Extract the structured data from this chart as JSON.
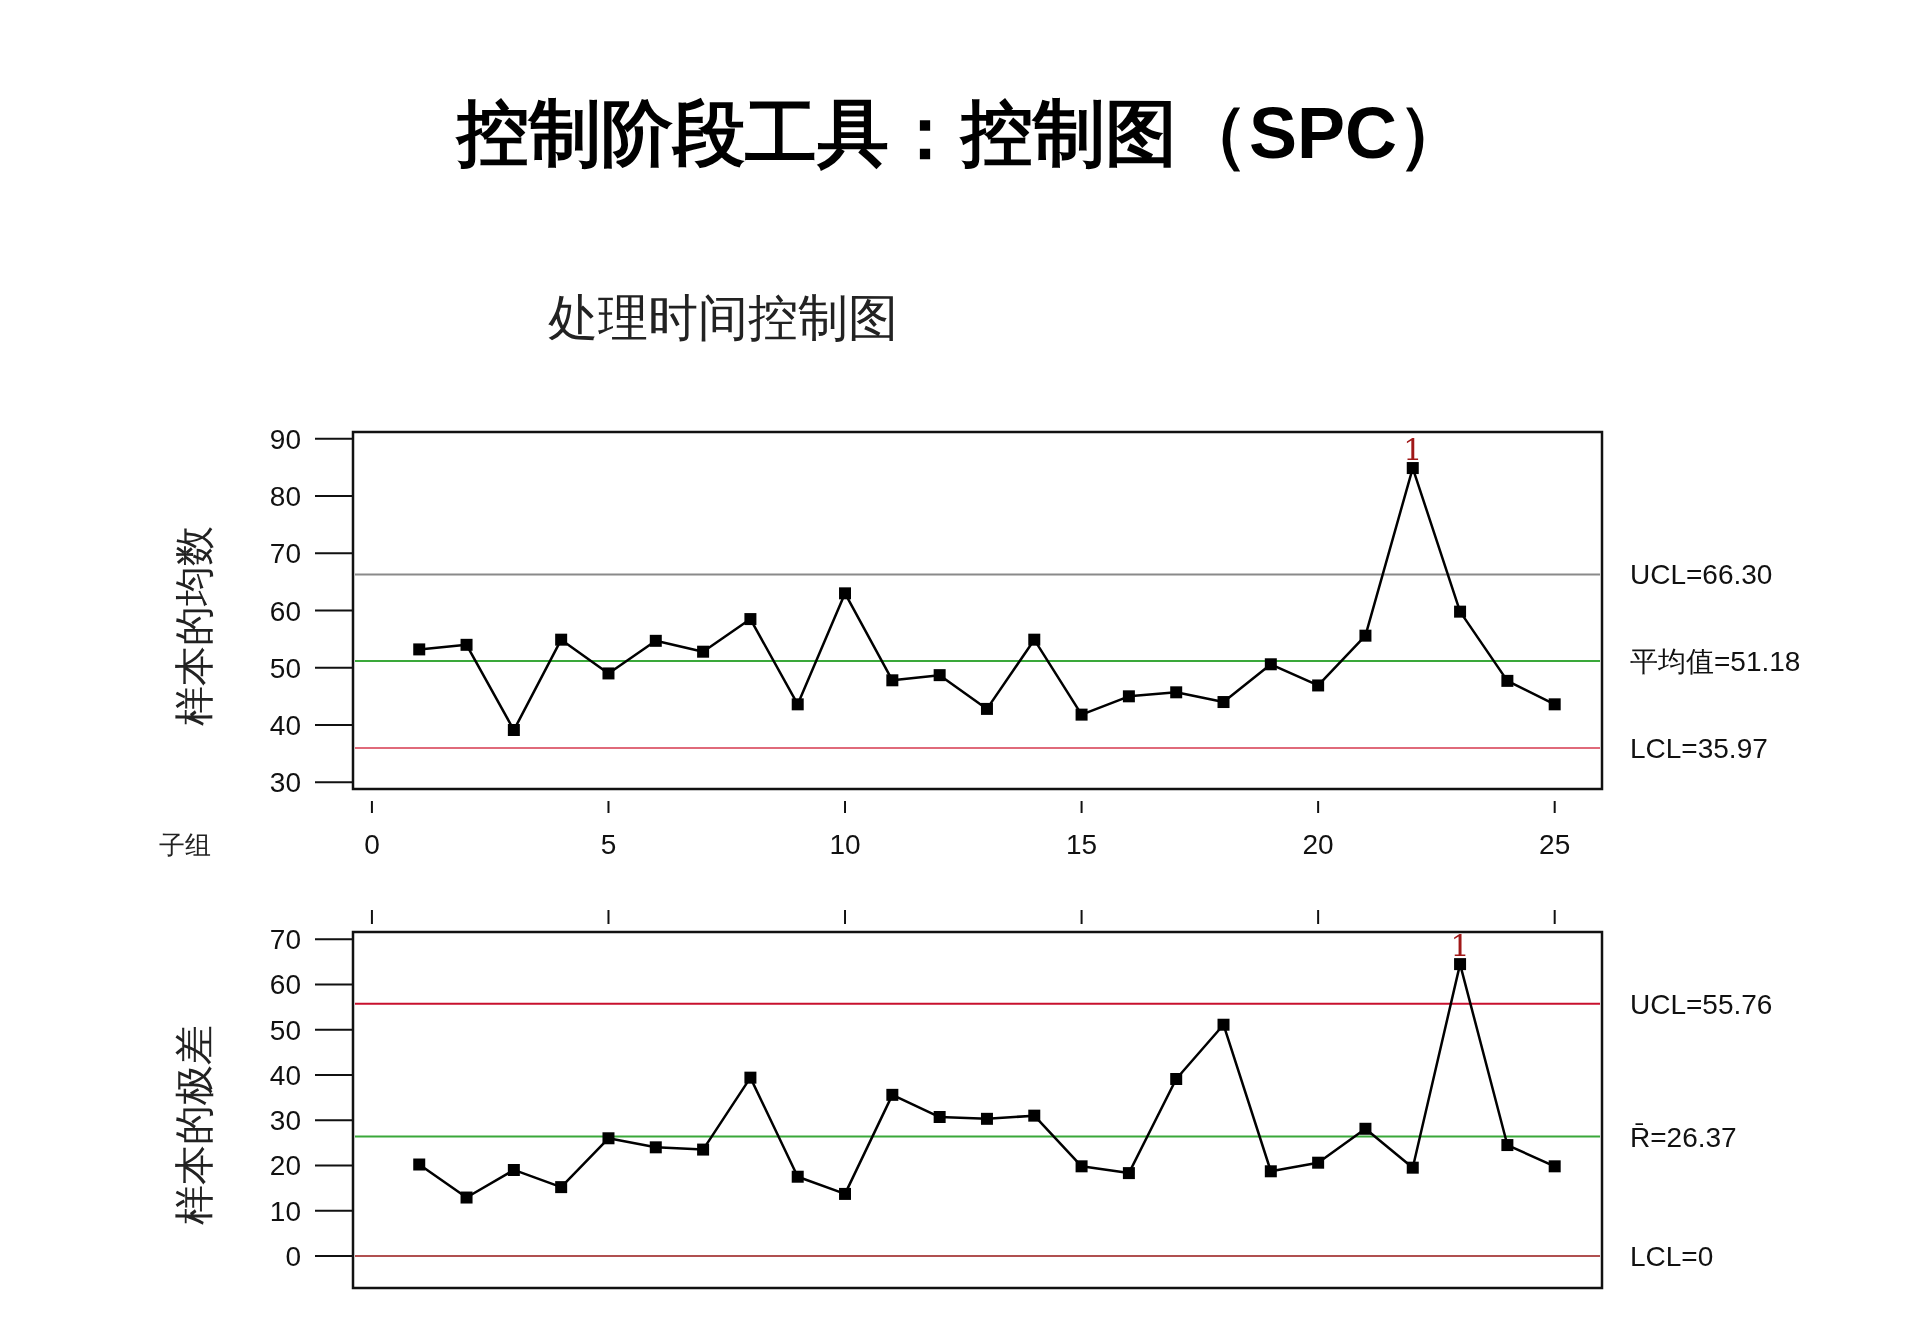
{
  "chart_data": [
    {
      "type": "line",
      "title": "控制阶段工具：控制图（SPC）",
      "subtitle": "处理时间控制图",
      "xlabel": "子组",
      "ylabel": "样本的均数",
      "marker": "square",
      "line_style": "solid",
      "xlim": [
        -0.4,
        26.0
      ],
      "xticks": [
        0,
        5,
        10,
        15,
        20,
        25
      ],
      "ylim": [
        28.8,
        91.2
      ],
      "yticks": [
        30,
        40,
        50,
        60,
        70,
        80,
        90
      ],
      "x": [
        1,
        2,
        3,
        4,
        5,
        6,
        7,
        8,
        9,
        10,
        11,
        12,
        13,
        14,
        15,
        16,
        17,
        18,
        19,
        20,
        21,
        22,
        23,
        24,
        25
      ],
      "series": [
        {
          "color": "#000000",
          "values": [
            53.2,
            54.0,
            39.1,
            54.9,
            49.0,
            54.7,
            52.8,
            58.5,
            43.6,
            63.0,
            47.8,
            48.7,
            42.8,
            54.9,
            41.8,
            45.0,
            45.7,
            44.0,
            50.6,
            46.9,
            55.6,
            84.9,
            59.8,
            47.7,
            43.6
          ]
        }
      ],
      "ref_lines": [
        {
          "axis": "y",
          "value": 66.3,
          "label": "UCL=66.30",
          "color": "#8a8a8a"
        },
        {
          "axis": "y",
          "value": 51.18,
          "label": "平均值=51.18",
          "color": "#3aa83a"
        },
        {
          "axis": "y",
          "value": 35.97,
          "label": "LCL=35.97",
          "color": "#e06a7a"
        }
      ],
      "annotations": [
        {
          "text": "1",
          "x": 22,
          "y": 84.9
        }
      ]
    },
    {
      "type": "line",
      "ylabel": "样本的极差",
      "marker": "square",
      "line_style": "solid",
      "tick_labels": "y",
      "xlim": [
        -0.4,
        26.0
      ],
      "xticks": [
        0,
        5,
        10,
        15,
        20,
        25
      ],
      "ylim": [
        -7.1,
        71.6
      ],
      "yticks": [
        0,
        10,
        20,
        30,
        40,
        50,
        60,
        70
      ],
      "x": [
        1,
        2,
        3,
        4,
        5,
        6,
        7,
        8,
        9,
        10,
        11,
        12,
        13,
        14,
        15,
        16,
        17,
        18,
        19,
        20,
        21,
        22,
        23,
        24,
        25
      ],
      "series": [
        {
          "color": "#000000",
          "values": [
            20.2,
            12.9,
            19.0,
            15.2,
            26.0,
            24.0,
            23.5,
            39.4,
            17.5,
            13.7,
            35.6,
            30.7,
            30.3,
            31.0,
            19.8,
            18.3,
            39.1,
            51.1,
            18.7,
            20.6,
            28.1,
            19.5,
            64.5,
            24.5,
            19.8
          ]
        }
      ],
      "ref_lines": [
        {
          "axis": "y",
          "value": 55.76,
          "label": "UCL=55.76",
          "color": "#c8102e"
        },
        {
          "axis": "y",
          "value": 26.37,
          "label": "R̄=26.37",
          "color": "#3aa83a"
        },
        {
          "axis": "y",
          "value": 0,
          "label": "LCL=0",
          "color": "#b05050"
        }
      ],
      "annotations": [
        {
          "text": "1",
          "x": 23,
          "y": 64.5
        }
      ]
    }
  ]
}
